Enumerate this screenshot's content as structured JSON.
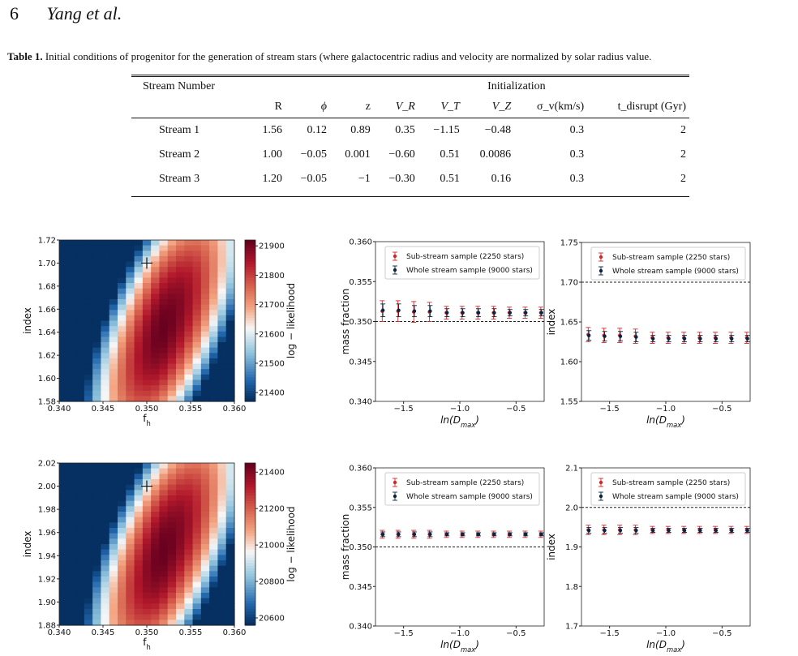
{
  "header": {
    "page_number": "6",
    "authors": "Yang et al."
  },
  "caption": {
    "label": "Table 1.",
    "text": " Initial conditions of progenitor for the generation of stream stars (where galactocentric radius and velocity are normalized by solar radius value."
  },
  "table": {
    "group_col": "Stream Number",
    "group_span": "Initialization",
    "columns": [
      "R",
      "ϕ",
      "z",
      "V_R",
      "V_T",
      "V_Z",
      "σ_v(km/s)",
      "t_disrupt (Gyr)"
    ],
    "rows": [
      {
        "name": "Stream 1",
        "values": [
          "1.56",
          "0.12",
          "0.89",
          "0.35",
          "−1.15",
          "−0.48",
          "0.3",
          "2"
        ]
      },
      {
        "name": "Stream 2",
        "values": [
          "1.00",
          "−0.05",
          "0.001",
          "−0.60",
          "0.51",
          "0.0086",
          "0.3",
          "2"
        ]
      },
      {
        "name": "Stream 3",
        "values": [
          "1.20",
          "−0.05",
          "−1",
          "−0.30",
          "0.51",
          "0.16",
          "0.3",
          "2"
        ]
      }
    ]
  },
  "chart_data": [
    {
      "type": "heatmap",
      "xlabel": "f_h",
      "ylabel": "index",
      "colorbar_label": "log − likelihood",
      "xlim": [
        0.34,
        0.36
      ],
      "ylim": [
        1.58,
        1.72
      ],
      "xticks": [
        "0.340",
        "0.345",
        "0.350",
        "0.355",
        "0.360"
      ],
      "yticks": [
        "1.58",
        "1.60",
        "1.62",
        "1.64",
        "1.66",
        "1.68",
        "1.70",
        "1.72"
      ],
      "colorbar_ticks": [
        "21400",
        "21500",
        "21600",
        "21700",
        "21800",
        "21900"
      ],
      "clim": [
        21370,
        21920
      ],
      "peak": {
        "x": 0.3515,
        "y": 1.64
      },
      "marker": {
        "x": 0.35,
        "y": 1.7
      },
      "colormap": {
        "low": "#2166ac",
        "mid": "#f7f7f7",
        "high": "#67001f"
      }
    },
    {
      "type": "scatter",
      "xlabel": "ln(D_max)",
      "ylabel": "mass fraction",
      "xlim": [
        -1.75,
        -0.25
      ],
      "ylim": [
        0.34,
        0.36
      ],
      "xticks": [
        "−1.5",
        "−1.0",
        "−0.5"
      ],
      "xtick_values": [
        -1.5,
        -1.0,
        -0.5
      ],
      "yticks": [
        "0.340",
        "0.345",
        "0.350",
        "0.355",
        "0.360"
      ],
      "reference_line": 0.35,
      "legend_position": "top-right",
      "x": [
        -1.69,
        -1.55,
        -1.41,
        -1.27,
        -1.12,
        -0.98,
        -0.84,
        -0.7,
        -0.56,
        -0.42,
        -0.28
      ],
      "series": [
        {
          "name": "Sub-stream sample (2250 stars)",
          "color": "#d62728",
          "values": [
            0.3513,
            0.3513,
            0.3512,
            0.3512,
            0.3511,
            0.3511,
            0.3511,
            0.3511,
            0.3511,
            0.3511,
            0.3511
          ],
          "errors": [
            0.0013,
            0.0013,
            0.0013,
            0.0012,
            0.0008,
            0.0008,
            0.0008,
            0.0008,
            0.0007,
            0.0007,
            0.0007
          ]
        },
        {
          "name": "Whole stream sample (9000 stars)",
          "color": "#0b2340",
          "values": [
            0.3514,
            0.3514,
            0.3513,
            0.3513,
            0.3511,
            0.3511,
            0.3511,
            0.3511,
            0.3511,
            0.3511,
            0.3511
          ],
          "errors": [
            0.0008,
            0.0008,
            0.0007,
            0.0007,
            0.0005,
            0.0005,
            0.0005,
            0.0005,
            0.0004,
            0.0004,
            0.0004
          ]
        }
      ]
    },
    {
      "type": "scatter",
      "xlabel": "ln(D_max)",
      "ylabel": "index",
      "xlim": [
        -1.75,
        -0.25
      ],
      "ylim": [
        1.55,
        1.75
      ],
      "xticks": [
        "−1.5",
        "−1.0",
        "−0.5"
      ],
      "xtick_values": [
        -1.5,
        -1.0,
        -0.5
      ],
      "yticks": [
        "1.55",
        "1.60",
        "1.65",
        "1.70",
        "1.75"
      ],
      "reference_line": 1.7,
      "legend_position": "top-right",
      "x": [
        -1.69,
        -1.55,
        -1.41,
        -1.27,
        -1.12,
        -0.98,
        -0.84,
        -0.7,
        -0.56,
        -0.42,
        -0.28
      ],
      "series": [
        {
          "name": "Sub-stream sample (2250 stars)",
          "color": "#d62728",
          "values": [
            1.634,
            1.633,
            1.633,
            1.632,
            1.63,
            1.63,
            1.63,
            1.63,
            1.63,
            1.63,
            1.63
          ],
          "errors": [
            0.009,
            0.009,
            0.009,
            0.009,
            0.007,
            0.007,
            0.007,
            0.007,
            0.007,
            0.007,
            0.007
          ]
        },
        {
          "name": "Whole stream sample (9000 stars)",
          "color": "#0b2340",
          "values": [
            1.633,
            1.632,
            1.632,
            1.631,
            1.629,
            1.629,
            1.629,
            1.629,
            1.629,
            1.629,
            1.629
          ],
          "errors": [
            0.006,
            0.006,
            0.006,
            0.006,
            0.004,
            0.004,
            0.004,
            0.004,
            0.004,
            0.004,
            0.004
          ]
        }
      ]
    },
    {
      "type": "heatmap",
      "xlabel": "f_h",
      "ylabel": "index",
      "colorbar_label": "log − likelihood",
      "xlim": [
        0.34,
        0.36
      ],
      "ylim": [
        1.88,
        2.02
      ],
      "xticks": [
        "0.340",
        "0.345",
        "0.350",
        "0.355",
        "0.360"
      ],
      "yticks": [
        "1.88",
        "1.90",
        "1.92",
        "1.94",
        "1.96",
        "1.98",
        "2.00",
        "2.02"
      ],
      "colorbar_ticks": [
        "20600",
        "20800",
        "21000",
        "21200",
        "21400"
      ],
      "clim": [
        20560,
        21450
      ],
      "peak": {
        "x": 0.3515,
        "y": 1.94
      },
      "marker": {
        "x": 0.35,
        "y": 2.0
      },
      "colormap": {
        "low": "#2166ac",
        "mid": "#f7f7f7",
        "high": "#67001f"
      }
    },
    {
      "type": "scatter",
      "xlabel": "ln(D_max)",
      "ylabel": "mass fraction",
      "xlim": [
        -1.75,
        -0.25
      ],
      "ylim": [
        0.34,
        0.36
      ],
      "xticks": [
        "−1.5",
        "−1.0",
        "−0.5"
      ],
      "xtick_values": [
        -1.5,
        -1.0,
        -0.5
      ],
      "yticks": [
        "0.340",
        "0.345",
        "0.350",
        "0.355",
        "0.360"
      ],
      "reference_line": 0.35,
      "legend_position": "top-right",
      "x": [
        -1.69,
        -1.55,
        -1.41,
        -1.27,
        -1.12,
        -0.98,
        -0.84,
        -0.7,
        -0.56,
        -0.42,
        -0.28
      ],
      "series": [
        {
          "name": "Sub-stream sample (2250 stars)",
          "color": "#d62728",
          "values": [
            0.3516,
            0.3516,
            0.3516,
            0.3516,
            0.3516,
            0.3516,
            0.3516,
            0.3516,
            0.3516,
            0.3516,
            0.3516
          ],
          "errors": [
            0.0005,
            0.0005,
            0.0005,
            0.0005,
            0.0004,
            0.0004,
            0.0004,
            0.0004,
            0.0004,
            0.0004,
            0.0004
          ]
        },
        {
          "name": "Whole stream sample (9000 stars)",
          "color": "#0b2340",
          "values": [
            0.3516,
            0.3516,
            0.3516,
            0.3516,
            0.3516,
            0.3516,
            0.3516,
            0.3516,
            0.3516,
            0.3516,
            0.3516
          ],
          "errors": [
            0.0003,
            0.0003,
            0.0003,
            0.0003,
            0.0002,
            0.0002,
            0.0002,
            0.0002,
            0.0002,
            0.0002,
            0.0002
          ]
        }
      ]
    },
    {
      "type": "scatter",
      "xlabel": "ln(D_max)",
      "ylabel": "index",
      "xlim": [
        -1.75,
        -0.25
      ],
      "ylim": [
        1.7,
        2.1
      ],
      "xticks": [
        "−1.5",
        "−1.0",
        "−0.5"
      ],
      "xtick_values": [
        -1.5,
        -1.0,
        -0.5
      ],
      "yticks": [
        "1.7",
        "1.8",
        "1.9",
        "2.0",
        "2.1"
      ],
      "reference_line": 2.0,
      "legend_position": "top-right",
      "x": [
        -1.69,
        -1.55,
        -1.41,
        -1.27,
        -1.12,
        -0.98,
        -0.84,
        -0.7,
        -0.56,
        -0.42,
        -0.28
      ],
      "series": [
        {
          "name": "Sub-stream sample (2250 stars)",
          "color": "#d62728",
          "values": [
            1.943,
            1.943,
            1.943,
            1.943,
            1.943,
            1.943,
            1.943,
            1.943,
            1.943,
            1.943,
            1.943
          ],
          "errors": [
            0.012,
            0.012,
            0.012,
            0.012,
            0.009,
            0.009,
            0.009,
            0.009,
            0.009,
            0.009,
            0.009
          ]
        },
        {
          "name": "Whole stream sample (9000 stars)",
          "color": "#0b2340",
          "values": [
            1.942,
            1.942,
            1.942,
            1.942,
            1.942,
            1.942,
            1.942,
            1.942,
            1.942,
            1.942,
            1.942
          ],
          "errors": [
            0.007,
            0.007,
            0.007,
            0.007,
            0.005,
            0.005,
            0.005,
            0.005,
            0.005,
            0.005,
            0.005
          ]
        }
      ]
    }
  ]
}
